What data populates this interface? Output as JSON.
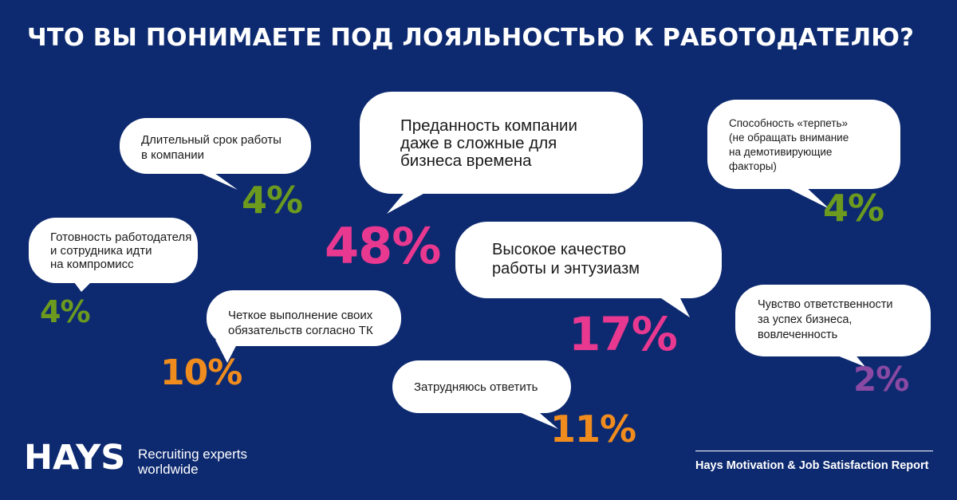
{
  "title": "ЧТО ВЫ ПОНИМАЕТЕ ПОД ЛОЯЛЬНОСТЬЮ К РАБОТОДАТЕЛЮ?",
  "chart_data": {
    "type": "bar",
    "categories": [
      "Длительный срок работы\nв компании",
      "Преданность компании\nдаже в сложные для\nбизнеса времена",
      "Способность «терпеть»\n(не обращать внимание\nна демотивирующие\nфакторы)",
      "Готовность работодателя\nи сотрудника идти\nна компромисс",
      "Высокое качество\nработы и энтузиазм",
      "Четкое выполнение своих\nобязательств согласно ТК",
      "Чувство ответственности\nза успех бизнеса,\nвовлеченность",
      "Затрудняюсь ответить"
    ],
    "values": [
      4,
      48,
      4,
      4,
      17,
      10,
      2,
      11
    ],
    "labels": [
      "4%",
      "48%",
      "4%",
      "4%",
      "17%",
      "10%",
      "2%",
      "11%"
    ]
  },
  "colors": {
    "background": "#0d2a70",
    "green": "#6c9a1f",
    "pink": "#e8388f",
    "orange": "#f08c1e",
    "purple": "#8a49a3",
    "bubble": "#ffffff"
  },
  "footer": {
    "logo": "HAYS",
    "tagline": "Recruiting experts\nworldwide",
    "report": "Hays Motivation & Job Satisfaction Report"
  }
}
